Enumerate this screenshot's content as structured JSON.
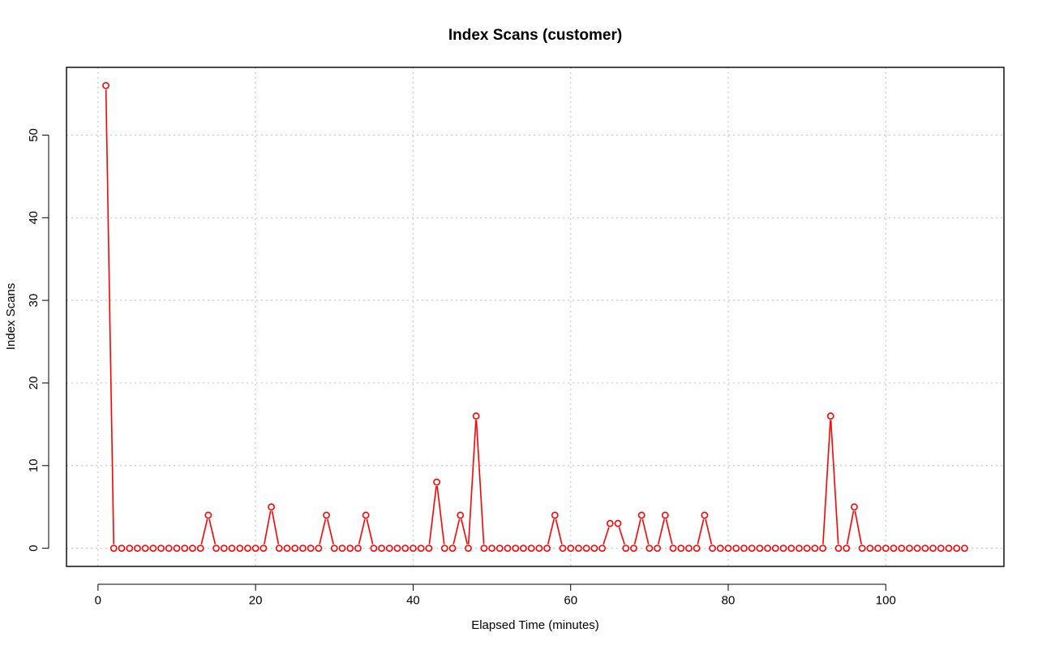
{
  "chart_data": {
    "type": "line",
    "title": "Index Scans (customer)",
    "xlabel": "Elapsed Time (minutes)",
    "ylabel": "Index Scans",
    "xlim": [
      -4,
      115
    ],
    "ylim": [
      -2.2,
      58.2
    ],
    "x_ticks": [
      0,
      20,
      40,
      60,
      80,
      100
    ],
    "y_ticks": [
      0,
      10,
      20,
      30,
      40,
      50
    ],
    "grid": true,
    "legend": "none",
    "series": [
      {
        "color": "#ff0000",
        "x": [
          1,
          2,
          3,
          4,
          5,
          6,
          7,
          8,
          9,
          10,
          11,
          12,
          13,
          14,
          15,
          16,
          17,
          18,
          19,
          20,
          21,
          22,
          23,
          24,
          25,
          26,
          27,
          28,
          29,
          30,
          31,
          32,
          33,
          34,
          35,
          36,
          37,
          38,
          39,
          40,
          41,
          42,
          43,
          44,
          45,
          46,
          47,
          48,
          49,
          50,
          51,
          52,
          53,
          54,
          55,
          56,
          57,
          58,
          59,
          60,
          61,
          62,
          63,
          64,
          65,
          66,
          67,
          68,
          69,
          70,
          71,
          72,
          73,
          74,
          75,
          76,
          77,
          78,
          79,
          80,
          81,
          82,
          83,
          84,
          85,
          86,
          87,
          88,
          89,
          90,
          91,
          92,
          93,
          94,
          95,
          96,
          97,
          98,
          99,
          100,
          101,
          102,
          103,
          104,
          105,
          106,
          107,
          108,
          109,
          110
        ],
        "y": [
          56,
          0,
          0,
          0,
          0,
          0,
          0,
          0,
          0,
          0,
          0,
          0,
          0,
          4,
          0,
          0,
          0,
          0,
          0,
          0,
          0,
          5,
          0,
          0,
          0,
          0,
          0,
          0,
          4,
          0,
          0,
          0,
          0,
          4,
          0,
          0,
          0,
          0,
          0,
          0,
          0,
          0,
          8,
          0,
          0,
          4,
          0,
          16,
          0,
          0,
          0,
          0,
          0,
          0,
          0,
          0,
          0,
          4,
          0,
          0,
          0,
          0,
          0,
          0,
          3,
          3,
          0,
          0,
          4,
          0,
          0,
          4,
          0,
          0,
          0,
          0,
          4,
          0,
          0,
          0,
          0,
          0,
          0,
          0,
          0,
          0,
          0,
          0,
          0,
          0,
          0,
          0,
          16,
          0,
          0,
          5,
          0,
          0,
          0,
          0,
          0,
          0,
          0,
          0,
          0,
          0,
          0,
          0,
          0,
          0
        ]
      }
    ]
  }
}
